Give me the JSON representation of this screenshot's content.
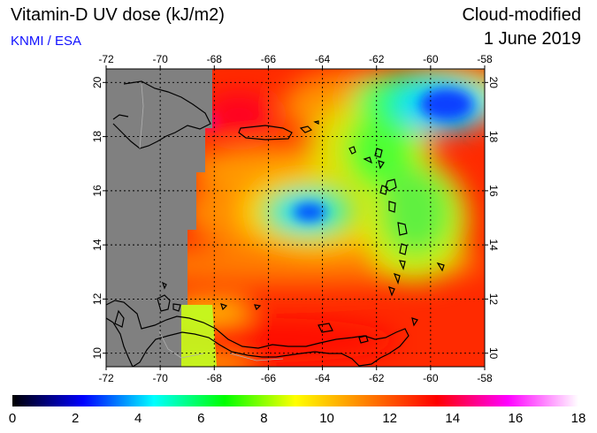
{
  "header": {
    "title": "Vitamin-D UV dose (kJ/m2)",
    "credit": "KNMI / ESA",
    "product": "Cloud-modified",
    "date": "1 June 2019"
  },
  "map": {
    "lon_range": [
      -72,
      -58
    ],
    "lat_range": [
      9.5,
      20.5
    ],
    "lon_ticks": [
      "-72",
      "-70",
      "-68",
      "-66",
      "-64",
      "-62",
      "-60",
      "-58"
    ],
    "lat_ticks": [
      "10",
      "12",
      "14",
      "16",
      "18",
      "20"
    ],
    "no_data_color": "#808080",
    "coastline_color": "#000000",
    "grid": "dotted",
    "features": {
      "no_data_region": "west of about -68.2 (Hispaniola / western Caribbean)",
      "uv_minimum": "blue low near -64.5, 15",
      "uv_minimum_ne": "blue low near -59.5, 19",
      "uv_maximum": "red-magenta high near Venezuela coast and Puerto Rico"
    }
  },
  "colorbar": {
    "labels": [
      "0",
      "2",
      "4",
      "6",
      "8",
      "10",
      "12",
      "14",
      "16",
      "18"
    ],
    "range": [
      0,
      18
    ],
    "colors": [
      "#000000",
      "#0000ff",
      "#00ffff",
      "#00ff00",
      "#ffff00",
      "#ff8000",
      "#ff0000",
      "#ff00ff",
      "#ffffff"
    ]
  }
}
